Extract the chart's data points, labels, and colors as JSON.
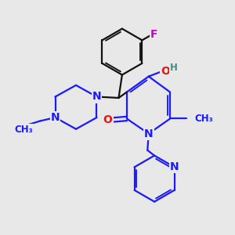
{
  "background_color": "#e8e8e8",
  "bond_color_blue": "#1a1aff",
  "bond_color_black": "#111111",
  "bond_width": 1.6,
  "atom_colors": {
    "N": "#1a1aff",
    "O": "#ee1111",
    "F": "#cc00cc",
    "H": "#3a9090",
    "C": "#111111"
  },
  "font_size_atom": 10,
  "font_size_small": 8.5
}
